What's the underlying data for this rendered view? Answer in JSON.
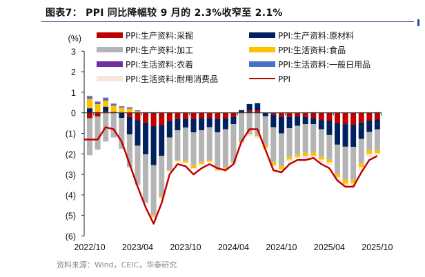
{
  "title": "图表7：  PPI 同比降幅较 9 月的 2.3%收窄至 2.1%",
  "source": "资料来源：Wind，CEIC，华泰研究",
  "chart_data": {
    "type": "bar",
    "stacked": true,
    "ylabel": "(%)",
    "ylim": [
      -6,
      3
    ],
    "yticks": [
      "3",
      "2",
      "1",
      "0",
      "(1)",
      "(2)",
      "(3)",
      "(4)",
      "(5)",
      "(6)"
    ],
    "ytick_values": [
      3,
      2,
      1,
      0,
      -1,
      -2,
      -3,
      -4,
      -5,
      -6
    ],
    "xtick_labels": [
      "2022/10",
      "2023/04",
      "2023/10",
      "2024/04",
      "2024/10",
      "2025/04",
      "2025/10"
    ],
    "legend_position": "top",
    "categories": [
      "2022/10",
      "2022/11",
      "2022/12",
      "2023/01",
      "2023/02",
      "2023/03",
      "2023/04",
      "2023/05",
      "2023/06",
      "2023/07",
      "2023/08",
      "2023/09",
      "2023/10",
      "2023/11",
      "2023/12",
      "2024/01",
      "2024/02",
      "2024/03",
      "2024/04",
      "2024/05",
      "2024/06",
      "2024/07",
      "2024/08",
      "2024/09",
      "2024/10",
      "2024/11",
      "2024/12",
      "2025/01",
      "2025/02",
      "2025/03",
      "2025/04",
      "2025/05",
      "2025/06",
      "2025/07",
      "2025/08",
      "2025/09",
      "2025/10"
    ],
    "series": [
      {
        "name": "PPI:生产资料:采掘",
        "color": "#c00000",
        "type": "bar",
        "values": [
          -0.27,
          -0.18,
          0.05,
          0.05,
          0,
          -0.2,
          -0.35,
          -0.47,
          -0.65,
          -0.6,
          -0.4,
          -0.3,
          -0.27,
          -0.3,
          -0.25,
          -0.25,
          -0.3,
          -0.25,
          -0.2,
          0.03,
          0.1,
          0.12,
          0,
          -0.1,
          -0.2,
          -0.2,
          -0.18,
          -0.2,
          -0.25,
          -0.35,
          -0.38,
          -0.5,
          -0.55,
          -0.58,
          -0.47,
          -0.38,
          -0.33
        ]
      },
      {
        "name": "PPI:生产资料:原材料",
        "color": "#002060",
        "type": "bar",
        "values": [
          0.22,
          0.03,
          0.25,
          0,
          -0.25,
          -0.85,
          -1.25,
          -1.55,
          -1.9,
          -1.5,
          -0.8,
          -0.55,
          -0.45,
          -0.65,
          -0.6,
          -0.45,
          -0.65,
          -0.55,
          -0.35,
          0.1,
          0.33,
          0.35,
          -0.17,
          -0.6,
          -0.8,
          -0.55,
          -0.45,
          -0.35,
          -0.3,
          -0.45,
          -0.7,
          -1.05,
          -1.1,
          -1.08,
          -0.8,
          -0.55,
          -0.48
        ]
      },
      {
        "name": "PPI:生产资料:加工",
        "color": "#b4b4b4",
        "type": "bar",
        "values": [
          -1.8,
          -1.62,
          -1.4,
          -1.2,
          -1.5,
          -1.6,
          -1.9,
          -2.35,
          -2.45,
          -1.95,
          -1.6,
          -1.45,
          -1.6,
          -1.6,
          -1.55,
          -1.6,
          -1.75,
          -1.85,
          -1.85,
          -1.4,
          -1.0,
          -1.1,
          -1.4,
          -1.7,
          -1.6,
          -1.4,
          -1.4,
          -1.4,
          -1.4,
          -1.35,
          -1.2,
          -1.45,
          -1.6,
          -1.6,
          -1.2,
          -0.9,
          -1.0
        ]
      },
      {
        "name": "PPI:生活资料:食品",
        "color": "#ffc000",
        "type": "bar",
        "values": [
          0.47,
          0.4,
          0.3,
          0.3,
          0.25,
          0.2,
          0.08,
          0,
          -0.07,
          -0.08,
          -0.03,
          -0.05,
          -0.1,
          -0.15,
          -0.1,
          -0.08,
          -0.08,
          -0.08,
          -0.05,
          -0.05,
          -0.05,
          -0.05,
          -0.12,
          -0.15,
          -0.15,
          -0.13,
          -0.12,
          -0.15,
          -0.15,
          -0.13,
          -0.13,
          -0.13,
          -0.2,
          -0.18,
          -0.17,
          -0.17,
          -0.15
        ]
      },
      {
        "name": "PPI:生活资料:衣着",
        "color": "#7030a0",
        "type": "bar",
        "values": [
          0.05,
          0.04,
          0.04,
          0.03,
          0.02,
          0.02,
          0.01,
          0.01,
          0.01,
          0,
          0,
          0,
          0,
          0,
          0,
          0,
          0,
          0,
          0,
          0,
          0,
          0,
          0,
          0,
          0,
          0,
          0,
          0,
          0,
          0,
          0,
          0,
          0,
          0,
          0,
          0,
          0
        ]
      },
      {
        "name": "PPI:生活资料:一般日用品",
        "color": "#4472c4",
        "type": "bar",
        "values": [
          0.08,
          0.08,
          0.1,
          0.07,
          0.05,
          0.05,
          0.03,
          0.02,
          0.02,
          0.02,
          0.02,
          0.02,
          0.02,
          0.01,
          0,
          0,
          0,
          0,
          0,
          0,
          0,
          0,
          0,
          0,
          0,
          0,
          0,
          0,
          0.03,
          0.02,
          0.02,
          0.02,
          0.01,
          0.01,
          0.02,
          0.02,
          0.03
        ]
      },
      {
        "name": "PPI:生活资料:耐用消费品",
        "color": "#fbe5d6",
        "type": "bar",
        "values": [
          0.02,
          0.02,
          0.02,
          0.02,
          0.02,
          0.02,
          -0.05,
          -0.05,
          -0.05,
          -0.05,
          -0.05,
          -0.05,
          -0.05,
          -0.05,
          -0.05,
          -0.05,
          -0.05,
          -0.05,
          -0.05,
          -0.05,
          -0.1,
          -0.1,
          -0.1,
          -0.1,
          -0.1,
          -0.1,
          -0.1,
          -0.1,
          -0.1,
          -0.15,
          -0.15,
          -0.15,
          -0.15,
          -0.15,
          -0.2,
          -0.15,
          -0.1
        ]
      },
      {
        "name": "PPI",
        "color": "#c00000",
        "type": "line",
        "values": [
          -1.3,
          -1.3,
          -0.7,
          -0.8,
          -1.4,
          -2.5,
          -3.6,
          -4.6,
          -5.4,
          -4.4,
          -3.0,
          -2.5,
          -2.6,
          -3.0,
          -2.7,
          -2.5,
          -2.7,
          -2.8,
          -2.5,
          -1.4,
          -0.8,
          -0.8,
          -1.8,
          -2.8,
          -2.9,
          -2.5,
          -2.3,
          -2.3,
          -2.2,
          -2.5,
          -2.7,
          -3.3,
          -3.6,
          -3.6,
          -2.9,
          -2.3,
          -2.1
        ]
      }
    ]
  }
}
